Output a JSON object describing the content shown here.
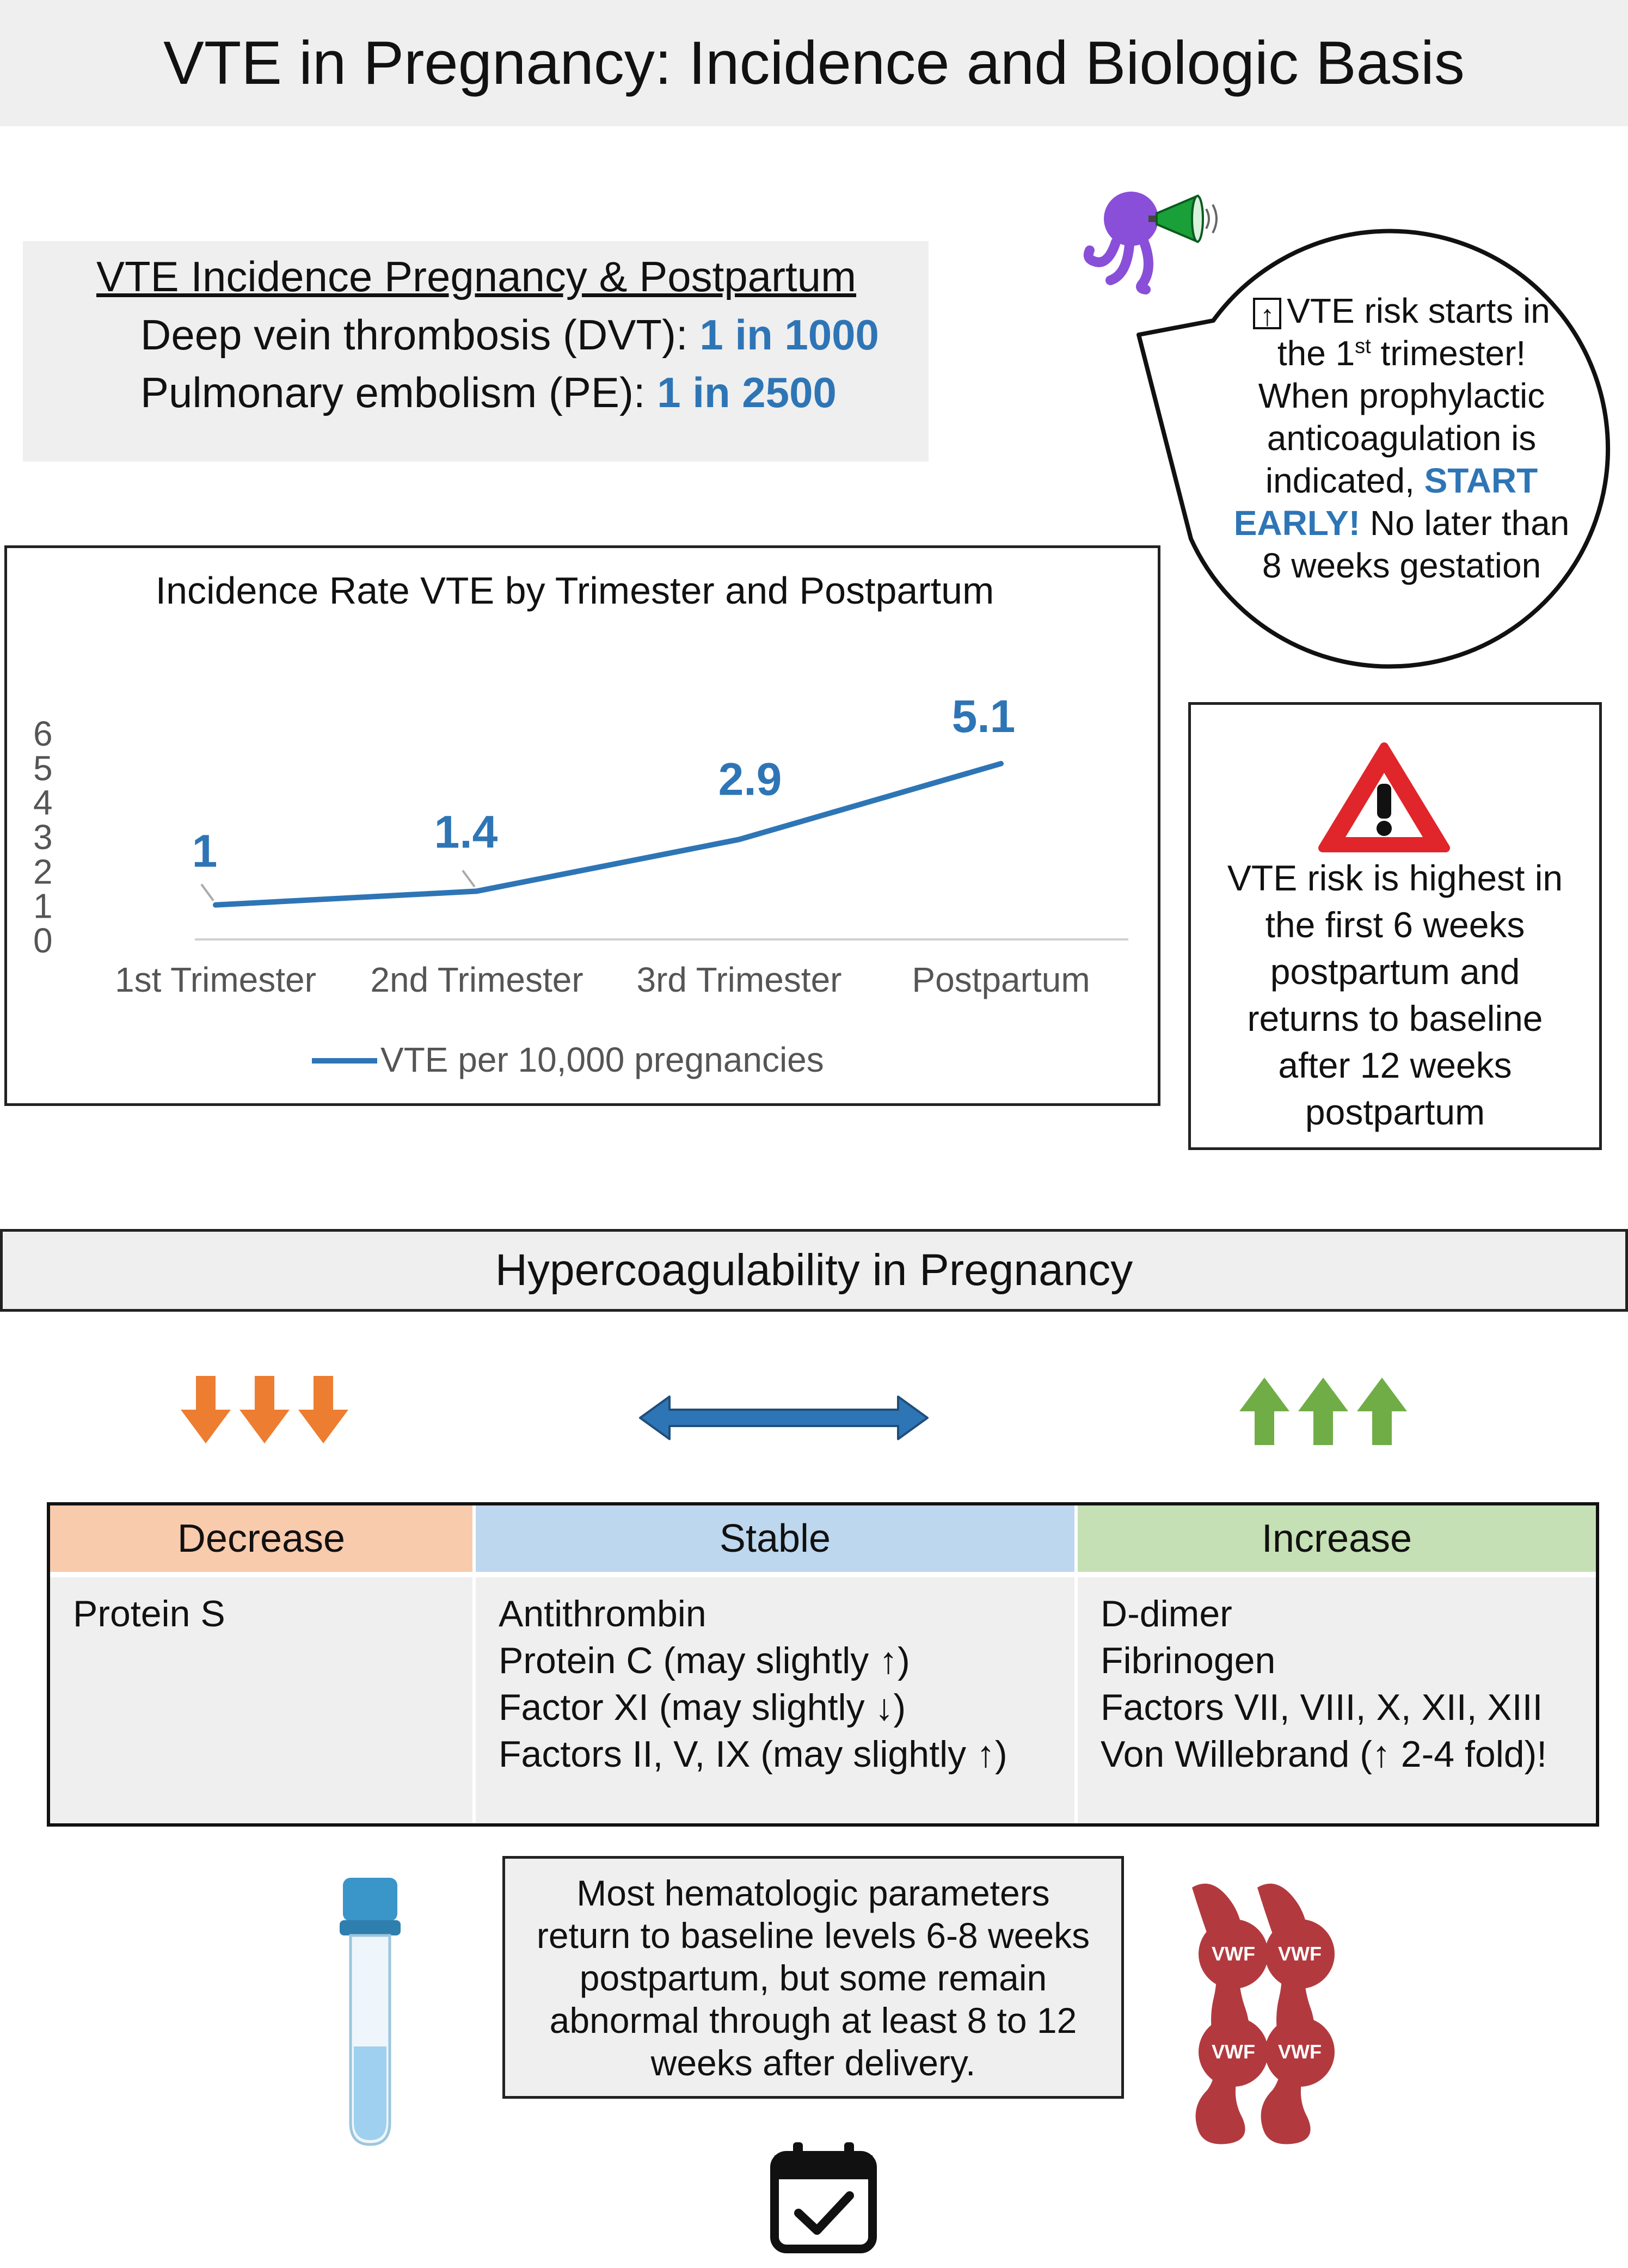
{
  "title": "VTE in Pregnancy: Incidence and Biologic Basis",
  "incidence": {
    "heading": "VTE Incidence Pregnancy & Postpartum",
    "dvt_label": "Deep vein thrombosis (DVT): ",
    "dvt_value": "1 in 1000",
    "pe_label": "Pulmonary embolism (PE): ",
    "pe_value": "1 in 2500"
  },
  "bubble": {
    "line1": "VTE risk starts in",
    "line2_pre": "the 1",
    "line2_sup": "st",
    "line2_post": " trimester!",
    "line3": "When prophylactic",
    "line4": "anticoagulation is",
    "line5_pre": "indicated, ",
    "line5_em": "START",
    "line6_em": "EARLY!",
    "line6_post": " No later than",
    "line7": "8 weeks gestation",
    "arrow_symbol": "↑"
  },
  "warning": {
    "lines": [
      "VTE risk is highest in",
      "the first 6 weeks",
      "postpartum and",
      "returns to baseline",
      "after 12 weeks",
      "postpartum"
    ]
  },
  "chart_data": {
    "type": "line",
    "title": "Incidence Rate VTE by Trimester and Postpartum",
    "categories": [
      "1st Trimester",
      "2nd Trimester",
      "3rd Trimester",
      "Postpartum"
    ],
    "series": [
      {
        "name": "VTE per 10,000 pregnancies",
        "values": [
          1,
          1.4,
          2.9,
          5.1
        ],
        "color": "#2E75B6"
      }
    ],
    "data_labels": [
      "1",
      "1.4",
      "2.9",
      "5.1"
    ],
    "yticks": [
      "0",
      "1",
      "2",
      "3",
      "4",
      "5",
      "6"
    ],
    "ylim": [
      0,
      6
    ],
    "grid": false,
    "legend_position": "bottom"
  },
  "hyper": {
    "title": "Hypercoagulability in Pregnancy"
  },
  "table": {
    "columns": [
      {
        "header": "Decrease",
        "color": "#F8CBAD",
        "items": [
          "Protein S"
        ]
      },
      {
        "header": "Stable",
        "color": "#BDD7EE",
        "items": [
          "Antithrombin",
          "Protein C (may slightly ↑)",
          "Factor XI (may slightly ↓)",
          "Factors II, V, IX (may slightly ↑)"
        ]
      },
      {
        "header": "Increase",
        "color": "#C5E0B4",
        "items": [
          "D-dimer",
          "Fibrinogen",
          "Factors VII, VIII, X, XII, XIII",
          "Von Willebrand (↑ 2-4 fold)!"
        ]
      }
    ]
  },
  "note": {
    "lines": [
      "Most hematologic parameters",
      "return to baseline levels 6-8 weeks",
      "postpartum, but some remain",
      "abnormal through at least 8 to 12",
      "weeks after delivery."
    ]
  },
  "vwf_label": "VWF",
  "colors": {
    "decrease_arrow": "#ED7D31",
    "stable_arrow": "#2E75B6",
    "increase_arrow": "#70AD47",
    "vwf": "#B23A3F",
    "mascot": "#8A4FD8",
    "megaphone": "#19A038"
  }
}
